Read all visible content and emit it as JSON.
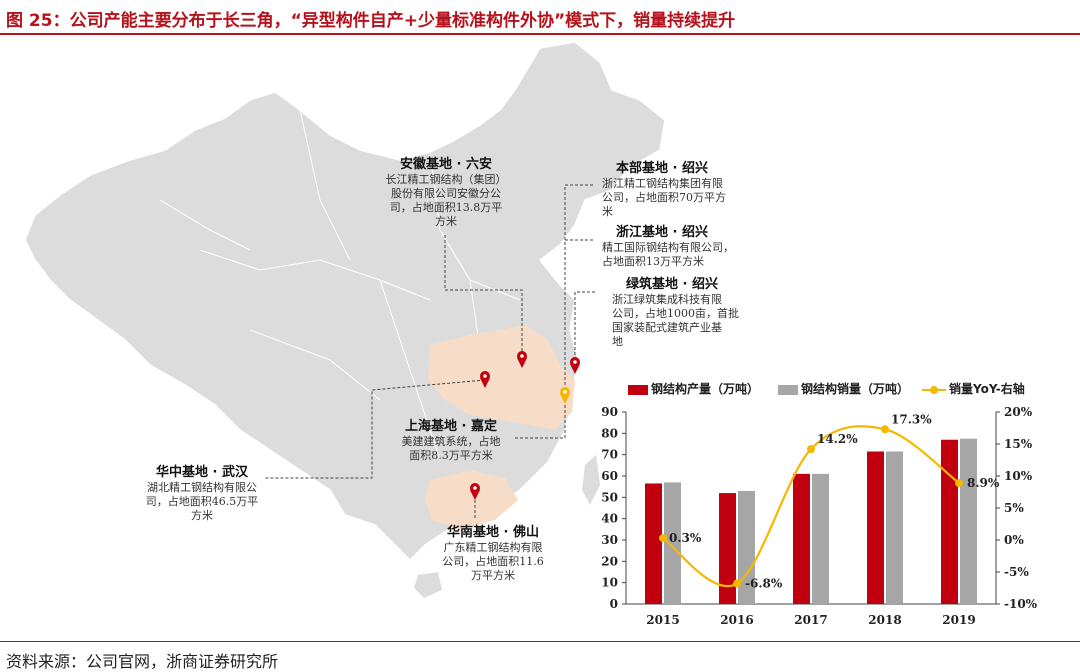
{
  "title": "图 25：公司产能主要分布于长三角，“异型构件自产+少量标准构件外协”模式下，销量持续提升",
  "source": "资料来源：公司官网，浙商证券研究所",
  "colors": {
    "production": "#c0000f",
    "sales": "#a6a6a6",
    "yoy": "#f5b800",
    "map": "#dcdcdc",
    "highlight": "#f7dcc8",
    "pin": "#c0000f"
  },
  "bases": {
    "anhui": {
      "name": "安徽基地 · 六安",
      "line1": "长江精工钢结构（集团）",
      "line2": "股份有限公司安徽分公",
      "line3": "司，占地面积13.8万平",
      "line4": "方米"
    },
    "benbu": {
      "name": "本部基地 · 绍兴",
      "line1": "浙江精工钢结构集团有限",
      "line2": "公司，占地面积70万平方",
      "line3": "米"
    },
    "zhejiang": {
      "name": "浙江基地 · 绍兴",
      "line1": "精工国际钢结构有限公司，",
      "line2": "占地面积13万平方米"
    },
    "lvzhu": {
      "name": "绿筑基地 · 绍兴",
      "line1": "浙江绿筑集成科技有限",
      "line2": "公司，占地1000亩，首批",
      "line3": "国家装配式建筑产业基",
      "line4": "地"
    },
    "shanghai": {
      "name": "上海基地 · 嘉定",
      "line1": "美建建筑系统，占地",
      "line2": "面积8.3万平方米"
    },
    "huazhong": {
      "name": "华中基地 · 武汉",
      "line1": "湖北精工钢结构有限公",
      "line2": "司，占地面积46.5万平",
      "line3": "方米"
    },
    "huanan": {
      "name": "华南基地 · 佛山",
      "line1": "广东精工钢结构有限",
      "line2": "公司，占地面积11.6",
      "line3": "万平方米"
    }
  },
  "chart_data": {
    "type": "bar",
    "categories": [
      "2015",
      "2016",
      "2017",
      "2018",
      "2019"
    ],
    "series": [
      {
        "name": "钢结构产量（万吨）",
        "values": [
          56.5,
          52,
          61,
          71.5,
          77
        ],
        "axis": "left"
      },
      {
        "name": "钢结构销量（万吨）",
        "values": [
          57,
          53,
          61,
          71.5,
          77.5
        ],
        "axis": "left"
      },
      {
        "name": "销量YoY-右轴",
        "type": "line",
        "values": [
          0.3,
          -6.8,
          14.2,
          17.3,
          8.9
        ],
        "labels": [
          "0.3%",
          "-6.8%",
          "14.2%",
          "17.3%",
          "8.9%"
        ],
        "axis": "right"
      }
    ],
    "ylim": [
      0,
      90
    ],
    "yticks": [
      "0",
      "10",
      "20",
      "30",
      "40",
      "50",
      "60",
      "70",
      "80",
      "90"
    ],
    "y2lim": [
      -10,
      20
    ],
    "y2ticks": [
      "-10%",
      "-5%",
      "0%",
      "5%",
      "10%",
      "15%",
      "20%"
    ],
    "legend": "top"
  }
}
